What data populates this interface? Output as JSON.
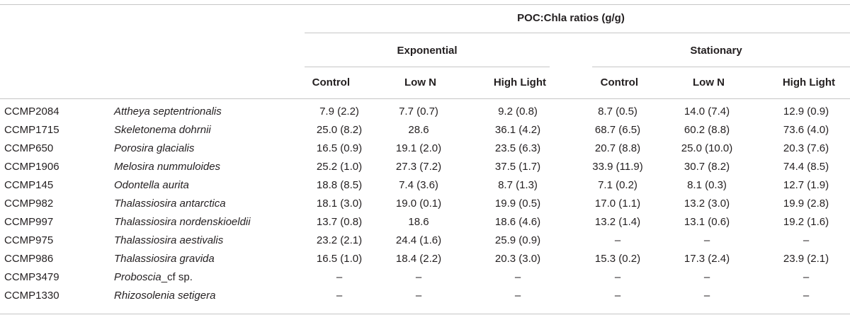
{
  "table": {
    "title": "POC:Chla ratios (g/g)",
    "groups": [
      "Exponential",
      "Stationary"
    ],
    "columns": [
      "Control",
      "Low N",
      "High Light",
      "Control",
      "Low N",
      "High Light"
    ],
    "rows": [
      {
        "strain": "CCMP2084",
        "species": "Attheya septentrionalis",
        "species_suffix": "",
        "values": [
          "7.9 (2.2)",
          "7.7 (0.7)",
          "9.2 (0.8)",
          "8.7 (0.5)",
          "14.0 (7.4)",
          "12.9 (0.9)"
        ]
      },
      {
        "strain": "CCMP1715",
        "species": "Skeletonema dohrnii",
        "species_suffix": "",
        "values": [
          "25.0 (8.2)",
          "28.6",
          "36.1 (4.2)",
          "68.7 (6.5)",
          "60.2 (8.8)",
          "73.6 (4.0)"
        ]
      },
      {
        "strain": "CCMP650",
        "species": "Porosira glacialis",
        "species_suffix": "",
        "values": [
          "16.5 (0.9)",
          "19.1 (2.0)",
          "23.5 (6.3)",
          "20.7 (8.8)",
          "25.0 (10.0)",
          "20.3 (7.6)"
        ]
      },
      {
        "strain": "CCMP1906",
        "species": "Melosira nummuloides",
        "species_suffix": "",
        "values": [
          "25.2 (1.0)",
          "27.3 (7.2)",
          "37.5 (1.7)",
          "33.9 (11.9)",
          "30.7 (8.2)",
          "74.4 (8.5)"
        ]
      },
      {
        "strain": "CCMP145",
        "species": "Odontella aurita",
        "species_suffix": "",
        "values": [
          "18.8 (8.5)",
          "7.4 (3.6)",
          "8.7 (1.3)",
          "7.1 (0.2)",
          "8.1 (0.3)",
          "12.7 (1.9)"
        ]
      },
      {
        "strain": "CCMP982",
        "species": "Thalassiosira antarctica",
        "species_suffix": "",
        "values": [
          "18.1 (3.0)",
          "19.0 (0.1)",
          "19.9 (0.5)",
          "17.0 (1.1)",
          "13.2 (3.0)",
          "19.9 (2.8)"
        ]
      },
      {
        "strain": "CCMP997",
        "species": "Thalassiosira nordenskioeldii",
        "species_suffix": "",
        "values": [
          "13.7 (0.8)",
          "18.6",
          "18.6 (4.6)",
          "13.2 (1.4)",
          "13.1 (0.6)",
          "19.2 (1.6)"
        ]
      },
      {
        "strain": "CCMP975",
        "species": "Thalassiosira aestivalis",
        "species_suffix": "",
        "values": [
          "23.2 (2.1)",
          "24.4 (1.6)",
          "25.9 (0.9)",
          "–",
          "–",
          "–"
        ]
      },
      {
        "strain": "CCMP986",
        "species": "Thalassiosira gravida",
        "species_suffix": "",
        "values": [
          "16.5 (1.0)",
          "18.4 (2.2)",
          "20.3 (3.0)",
          "15.3 (0.2)",
          "17.3 (2.4)",
          "23.9 (2.1)"
        ]
      },
      {
        "strain": "CCMP3479",
        "species": "Proboscia",
        "species_suffix": "_cf sp.",
        "values": [
          "–",
          "–",
          "–",
          "–",
          "–",
          "–"
        ]
      },
      {
        "strain": "CCMP1330",
        "species": "Rhizosolenia setigera",
        "species_suffix": "",
        "values": [
          "–",
          "–",
          "–",
          "–",
          "–",
          "–"
        ]
      }
    ]
  }
}
